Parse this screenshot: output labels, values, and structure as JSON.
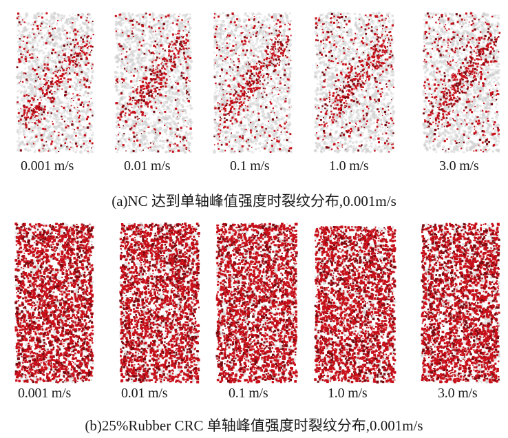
{
  "figure": {
    "colors": {
      "crack": "#c8101a",
      "crack_dark": "#7a0a10",
      "matrix": "#cfcfcf",
      "background": "#ffffff"
    },
    "panels": [
      {
        "id": "a",
        "caption": "(a)NC 达到单轴峰值强度时裂纹分布,0.001m/s",
        "crack_density": "sparse",
        "specimens": [
          {
            "label": "0.001 m/s"
          },
          {
            "label": "0.01 m/s"
          },
          {
            "label": "0.1 m/s"
          },
          {
            "label": "1.0 m/s"
          },
          {
            "label": "3.0 m/s"
          }
        ]
      },
      {
        "id": "b",
        "caption": "(b)25%Rubber CRC 单轴峰值强度时裂纹分布,0.001m/s",
        "crack_density": "dense",
        "specimens": [
          {
            "label": "0.001 m/s"
          },
          {
            "label": "0.01 m/s"
          },
          {
            "label": "0.1 m/s"
          },
          {
            "label": "1.0 m/s"
          },
          {
            "label": "3.0 m/s"
          }
        ]
      }
    ]
  }
}
